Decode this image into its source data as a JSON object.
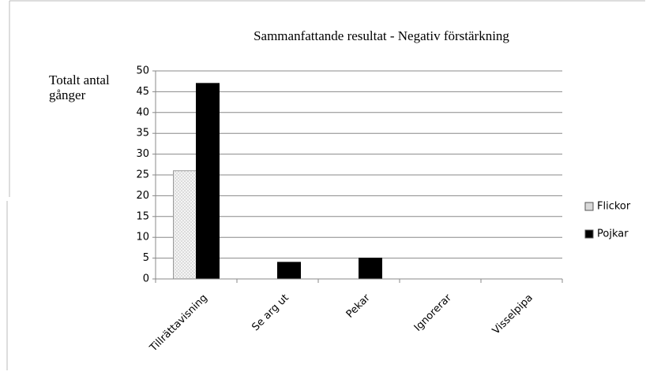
{
  "chart_data": {
    "type": "bar",
    "title": "Sammanfattande resultat - Negativ förstärkning",
    "y_label": "Totalt antal gånger",
    "categories": [
      "Tillrättavisning",
      "Se arg ut",
      "Pekar",
      "Ignorerar",
      "Visselpipa"
    ],
    "series": [
      {
        "name": "Flickor",
        "color": "#d9d9d9",
        "values": [
          26,
          0,
          0,
          0,
          0
        ]
      },
      {
        "name": "Pojkar",
        "color": "#000000",
        "values": [
          47,
          4,
          5,
          0,
          0
        ]
      }
    ],
    "ylim": [
      0,
      50
    ],
    "yticks": [
      0,
      5,
      10,
      15,
      20,
      25,
      30,
      35,
      40,
      45,
      50
    ],
    "grid": true,
    "legend": "right"
  }
}
